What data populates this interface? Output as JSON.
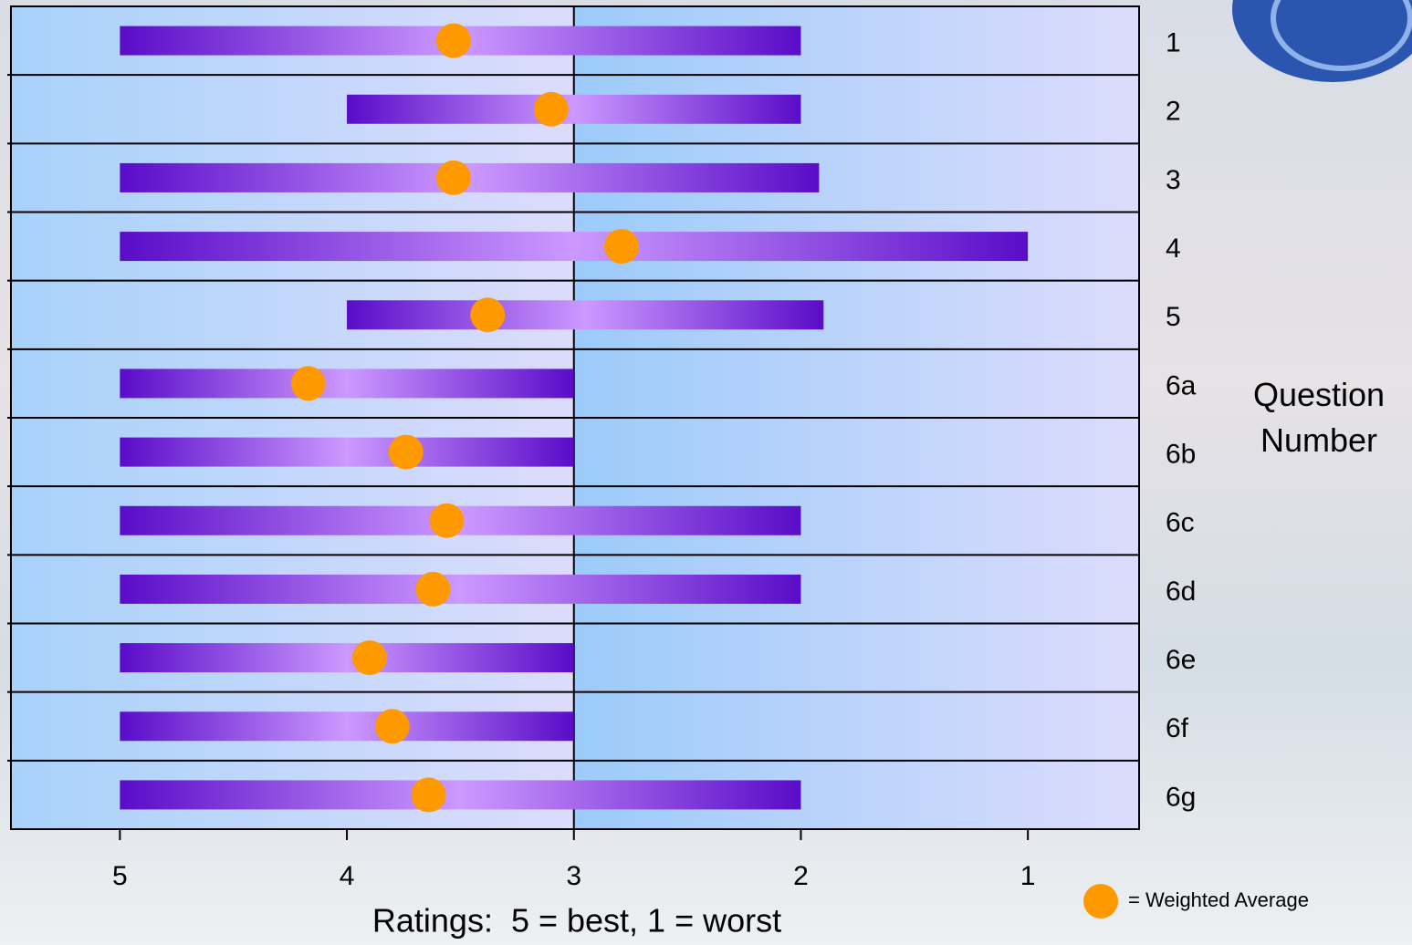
{
  "chart_data": {
    "type": "range",
    "categories": [
      "1",
      "2",
      "3",
      "4",
      "5",
      "6a",
      "6b",
      "6c",
      "6d",
      "6e",
      "6f",
      "6g"
    ],
    "start": [
      5,
      4,
      5,
      5,
      4,
      5,
      5,
      5,
      5,
      5,
      5,
      5
    ],
    "end": [
      2,
      2,
      1.92,
      1,
      1.9,
      3,
      3,
      2,
      2,
      3,
      3,
      2
    ],
    "series": [
      {
        "name": "= Weighted Average",
        "color": "#ff9900",
        "values": [
          3.53,
          3.1,
          3.53,
          2.79,
          3.38,
          4.17,
          3.74,
          3.56,
          3.62,
          3.9,
          3.8,
          3.64
        ]
      }
    ],
    "xlim": [
      5.48,
      0.51
    ],
    "xticks": [
      5,
      4,
      3,
      2,
      1
    ],
    "reference": 3,
    "xlabel": "Ratings:  5 = best, 1 = worst",
    "ylabel": "Question Number"
  }
}
